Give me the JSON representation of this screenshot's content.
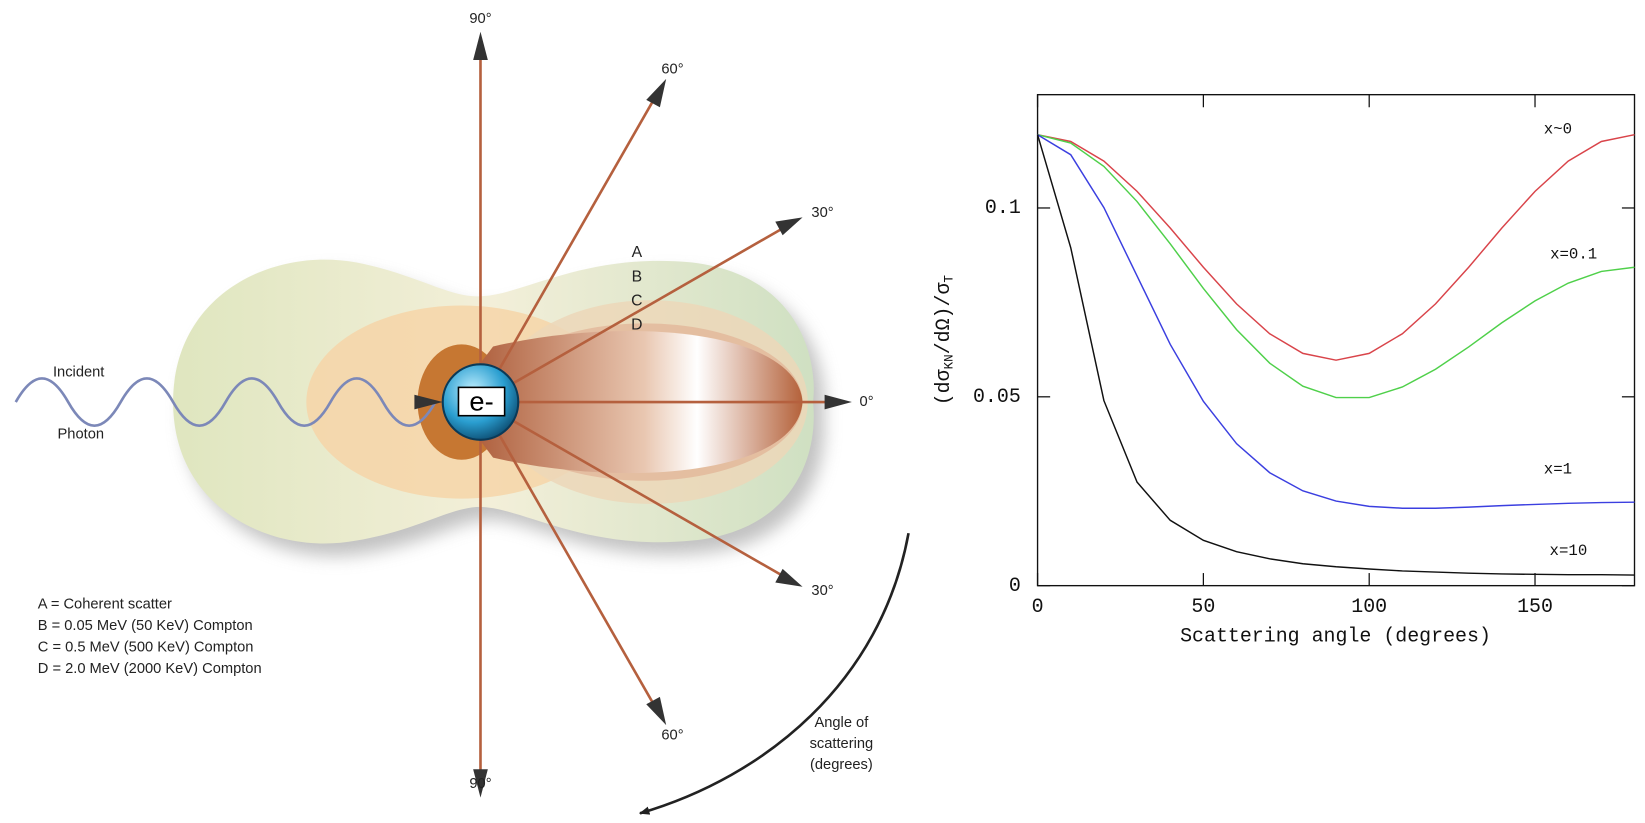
{
  "diagram": {
    "angles": [
      "90°",
      "60°",
      "30°",
      "0°",
      "30°",
      "60°",
      "90°"
    ],
    "regions": [
      "A",
      "B",
      "C",
      "D"
    ],
    "incident": [
      "Incident",
      "Photon"
    ],
    "electron": "e-",
    "legend": [
      "A = Coherent scatter",
      "B = 0.05 MeV (50 KeV) Compton",
      "C = 0.5 MeV (500 KeV) Compton",
      "D = 2.0 MeV (2000 KeV) Compton"
    ],
    "angle_caption": [
      "Angle of",
      "scattering",
      "(degrees)"
    ]
  },
  "chart_data": {
    "type": "line",
    "xlabel": "Scattering angle (degrees)",
    "ylabel": [
      "(dσ",
      "KN",
      "/dΩ)/σ",
      "T"
    ],
    "x": [
      0,
      10,
      20,
      30,
      40,
      50,
      60,
      70,
      80,
      90,
      100,
      110,
      120,
      130,
      140,
      150,
      160,
      170,
      180
    ],
    "xlim": [
      0,
      180
    ],
    "ylim": [
      0,
      0.13
    ],
    "xticks": [
      0,
      50,
      100,
      150
    ],
    "yticks": [
      0,
      0.05,
      0.1
    ],
    "series": [
      {
        "name": "x~0",
        "color": "#d9444a",
        "values": [
          0.1194,
          0.1176,
          0.1124,
          0.1044,
          0.0947,
          0.0843,
          0.0746,
          0.0667,
          0.0615,
          0.0597,
          0.0615,
          0.0667,
          0.0746,
          0.0843,
          0.0947,
          0.1044,
          0.1124,
          0.1176,
          0.1194
        ]
      },
      {
        "name": "x=0.1",
        "color": "#4fd04a",
        "values": [
          0.1194,
          0.1172,
          0.111,
          0.1017,
          0.0905,
          0.0787,
          0.0678,
          0.0589,
          0.0528,
          0.0498,
          0.0498,
          0.0526,
          0.0573,
          0.0632,
          0.0696,
          0.0754,
          0.0801,
          0.0832,
          0.0843
        ]
      },
      {
        "name": "x=1",
        "color": "#3b3fe0",
        "values": [
          0.1194,
          0.1141,
          0.1001,
          0.082,
          0.0639,
          0.0488,
          0.0376,
          0.0299,
          0.0251,
          0.0224,
          0.021,
          0.0205,
          0.0205,
          0.0208,
          0.0212,
          0.0215,
          0.0218,
          0.022,
          0.0221
        ]
      },
      {
        "name": "x=10",
        "color": "#111111",
        "values": [
          0.1194,
          0.0895,
          0.049,
          0.0274,
          0.0173,
          0.012,
          0.009,
          0.0071,
          0.0058,
          0.005,
          0.0044,
          0.0039,
          0.0036,
          0.0033,
          0.0031,
          0.003,
          0.0029,
          0.0029,
          0.0028
        ]
      }
    ]
  }
}
